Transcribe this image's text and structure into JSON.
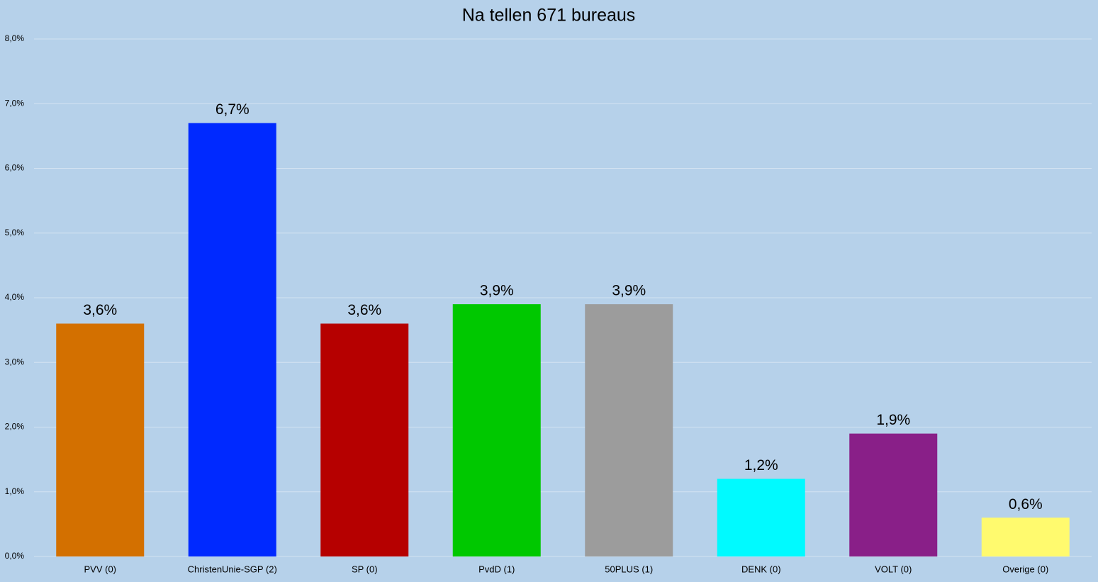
{
  "chart_data": {
    "type": "bar",
    "title": "Na tellen 671 bureaus",
    "categories": [
      "PVV (0)",
      "ChristenUnie-SGP (2)",
      "SP (0)",
      "PvdD (1)",
      "50PLUS (1)",
      "DENK (0)",
      "VOLT (0)",
      "Overige (0)"
    ],
    "values": [
      3.6,
      6.7,
      3.6,
      3.9,
      3.9,
      1.2,
      1.9,
      0.6
    ],
    "value_labels": [
      "3,6%",
      "6,7%",
      "3,6%",
      "3,9%",
      "3,9%",
      "1,2%",
      "1,9%",
      "0,6%"
    ],
    "colors": [
      "#d37000",
      "#0029ff",
      "#b60000",
      "#00c800",
      "#9c9c9c",
      "#00faff",
      "#891f88",
      "#fffa6e"
    ],
    "ylim": [
      0,
      8
    ],
    "yticks": [
      {
        "value": 0,
        "label": "0,0%"
      },
      {
        "value": 1,
        "label": "1,0%"
      },
      {
        "value": 2,
        "label": "2,0%"
      },
      {
        "value": 3,
        "label": "3,0%"
      },
      {
        "value": 4,
        "label": "4,0%"
      },
      {
        "value": 5,
        "label": "5,0%"
      },
      {
        "value": 6,
        "label": "6,0%"
      },
      {
        "value": 7,
        "label": "7,0%"
      },
      {
        "value": 8,
        "label": "8,0%"
      }
    ],
    "grid": true
  }
}
